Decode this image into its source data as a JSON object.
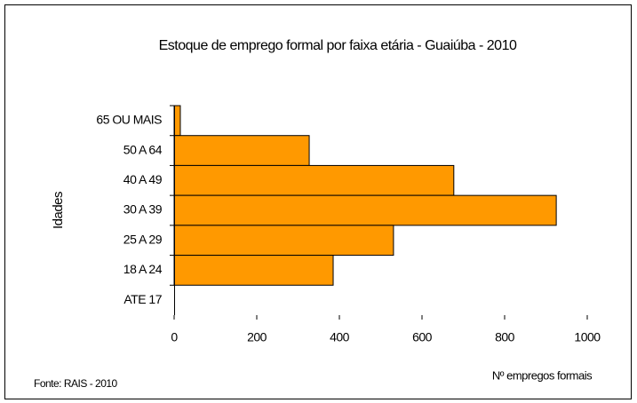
{
  "chart_data": {
    "type": "bar",
    "orientation": "horizontal",
    "title": "Estoque de emprego formal por faixa etária - Guaiúba - 2010",
    "y_label": "Idades",
    "x_label": "Nº empregos formais",
    "source": "Fonte: RAIS - 2010",
    "categories": [
      "65 OU MAIS",
      "50 A 64",
      "40 A 49",
      "30 A 39",
      "25 A 29",
      "18 A 24",
      "ATE 17"
    ],
    "values": [
      15,
      327,
      677,
      925,
      531,
      385,
      0
    ],
    "color": "#ff9900",
    "xlim": [
      0,
      1000
    ],
    "xticks": [
      0,
      200,
      400,
      600,
      800,
      1000
    ],
    "grid": false
  }
}
